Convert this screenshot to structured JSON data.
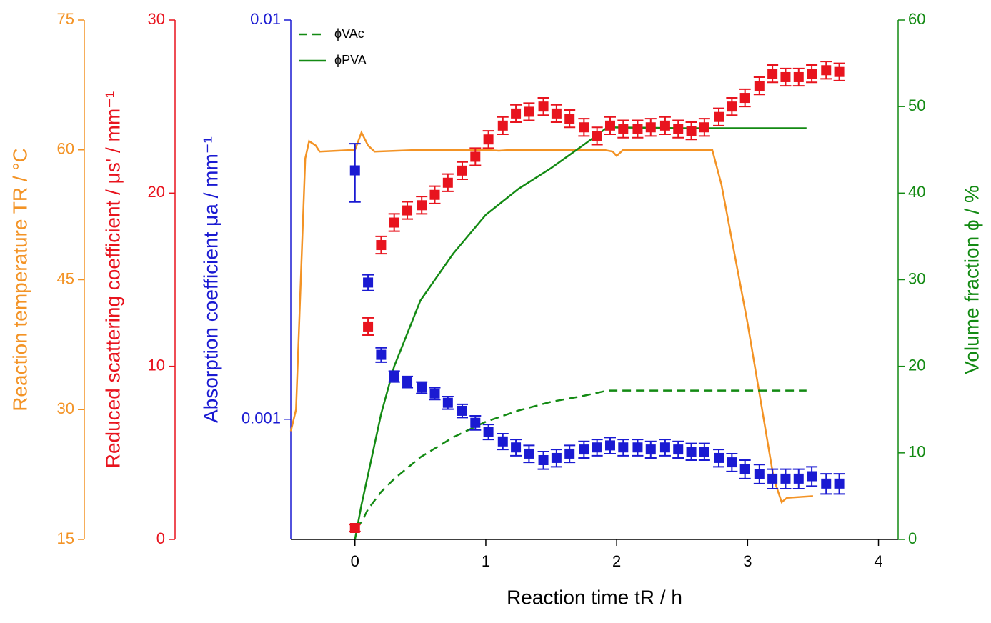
{
  "chart_data": {
    "type": "multi-axis",
    "xlabel": "Reaction time tR / h",
    "xlim": [
      -0.49,
      4.15
    ],
    "xticks": [
      0,
      1,
      2,
      3,
      4
    ],
    "legend": "upper left",
    "y_axes": [
      {
        "label": "Reaction temperature TR / °C",
        "color": "#f39325",
        "ylim": [
          15,
          75
        ],
        "yticks": [
          15,
          30,
          45,
          60,
          75
        ]
      },
      {
        "label": "Reduced scattering coefficient / μs' / mm⁻¹",
        "color": "#e8141e",
        "ylim": [
          0,
          30
        ],
        "yticks": [
          0,
          10,
          20,
          30
        ]
      },
      {
        "label": "Absorption coefficient μa / mm⁻¹",
        "color": "#1a1ad2",
        "ylim": [
          0.0005,
          0.01
        ],
        "yticks": [
          0.001,
          0.01
        ],
        "log": true
      },
      {
        "label": "Volume fraction ϕ / %",
        "color": "#138a13",
        "ylim": [
          0,
          60
        ],
        "yticks": [
          0,
          10,
          20,
          30,
          40,
          50,
          60
        ]
      }
    ],
    "series": [
      {
        "axis": 0,
        "mode": "line",
        "color": "#f39325",
        "x": [
          -0.49,
          -0.45,
          -0.38,
          -0.35,
          -0.3,
          -0.27,
          0,
          0.05,
          0.1,
          0.15,
          0.5,
          1.0,
          1.1,
          1.2,
          1.5,
          1.9,
          1.97,
          2.0,
          2.05,
          2.73,
          2.8,
          3.0,
          3.2,
          3.26,
          3.3,
          3.5
        ],
        "values": [
          27.5,
          30,
          59,
          61,
          60.5,
          59.8,
          60,
          62,
          60.5,
          59.8,
          60,
          60,
          59.9,
          60,
          60,
          60,
          59.8,
          59.3,
          60,
          60,
          56,
          40,
          22,
          19.3,
          19.8,
          20
        ]
      },
      {
        "axis": 3,
        "mode": "dashed",
        "color": "#138a13",
        "name": "ϕVAc",
        "x": [
          0,
          0.05,
          0.1,
          0.2,
          0.3,
          0.5,
          0.75,
          1,
          1.25,
          1.5,
          1.75,
          1.93,
          2.5,
          3.0,
          3.45
        ],
        "values": [
          1.4,
          2,
          3.5,
          5.5,
          7,
          9.5,
          11.8,
          13.6,
          14.9,
          15.9,
          16.6,
          17.2,
          17.2,
          17.2,
          17.2
        ]
      },
      {
        "axis": 3,
        "mode": "line",
        "color": "#138a13",
        "name": "ϕPVA",
        "x": [
          0,
          0.05,
          0.1,
          0.2,
          0.3,
          0.5,
          0.75,
          1,
          1.25,
          1.5,
          1.75,
          1.93,
          2.5,
          3.0,
          3.45
        ],
        "values": [
          0,
          4,
          7.5,
          14.5,
          20,
          27.6,
          33,
          37.5,
          40.5,
          42.9,
          45.6,
          47.6,
          47.5,
          47.5,
          47.5
        ]
      },
      {
        "axis": 1,
        "mode": "errorbar",
        "color": "#e8141e",
        "x": [
          0,
          0.1,
          0.2,
          0.3,
          0.4,
          0.51,
          0.61,
          0.71,
          0.82,
          0.92,
          1.02,
          1.13,
          1.23,
          1.33,
          1.44,
          1.54,
          1.64,
          1.75,
          1.85,
          1.95,
          2.05,
          2.16,
          2.26,
          2.37,
          2.47,
          2.57,
          2.67,
          2.78,
          2.88,
          2.98,
          3.09,
          3.19,
          3.29,
          3.39,
          3.49,
          3.6,
          3.7
        ],
        "values": [
          0.66,
          12.3,
          17.0,
          18.3,
          19.0,
          19.3,
          19.9,
          20.6,
          21.3,
          22.1,
          23.1,
          23.9,
          24.6,
          24.7,
          25.0,
          24.6,
          24.3,
          23.8,
          23.3,
          23.9,
          23.7,
          23.7,
          23.8,
          23.9,
          23.7,
          23.6,
          23.8,
          24.4,
          25.0,
          25.5,
          26.2,
          26.9,
          26.7,
          26.7,
          26.9,
          27.1,
          27.0
        ],
        "errors": [
          0.2,
          0.5,
          0.5,
          0.5,
          0.5,
          0.5,
          0.5,
          0.5,
          0.5,
          0.5,
          0.5,
          0.5,
          0.5,
          0.5,
          0.5,
          0.5,
          0.5,
          0.5,
          0.5,
          0.5,
          0.5,
          0.5,
          0.5,
          0.5,
          0.5,
          0.5,
          0.5,
          0.5,
          0.5,
          0.5,
          0.5,
          0.5,
          0.5,
          0.5,
          0.5,
          0.5,
          0.5
        ]
      },
      {
        "axis": 2,
        "mode": "errorbar",
        "color": "#1a1ad2",
        "x": [
          0,
          0.1,
          0.2,
          0.3,
          0.4,
          0.51,
          0.61,
          0.71,
          0.82,
          0.92,
          1.02,
          1.13,
          1.23,
          1.33,
          1.44,
          1.54,
          1.64,
          1.75,
          1.85,
          1.95,
          2.05,
          2.16,
          2.26,
          2.37,
          2.47,
          2.57,
          2.67,
          2.78,
          2.88,
          2.98,
          3.09,
          3.19,
          3.29,
          3.39,
          3.49,
          3.6,
          3.7
        ],
        "values": [
          0.0042,
          0.0022,
          0.00145,
          0.00128,
          0.00124,
          0.0012,
          0.00116,
          0.0011,
          0.00105,
          0.00098,
          0.00093,
          0.00088,
          0.00085,
          0.00082,
          0.00079,
          0.0008,
          0.00082,
          0.00084,
          0.00085,
          0.00086,
          0.00085,
          0.00085,
          0.00084,
          0.00085,
          0.00084,
          0.00083,
          0.00083,
          0.0008,
          0.00078,
          0.00075,
          0.00073,
          0.00071,
          0.00071,
          0.00071,
          0.00072,
          0.00069,
          0.00069
        ],
        "errors": [
          0.0007,
          0.0001,
          6e-05,
          4e-05,
          4e-05,
          4e-05,
          4e-05,
          4e-05,
          4e-05,
          4e-05,
          4e-05,
          4e-05,
          4e-05,
          4e-05,
          4e-05,
          4e-05,
          4e-05,
          4e-05,
          4e-05,
          4e-05,
          4e-05,
          4e-05,
          4e-05,
          4e-05,
          4e-05,
          4e-05,
          4e-05,
          4e-05,
          4e-05,
          4e-05,
          4e-05,
          4e-05,
          4e-05,
          4e-05,
          4e-05,
          4e-05,
          4e-05
        ]
      }
    ]
  }
}
